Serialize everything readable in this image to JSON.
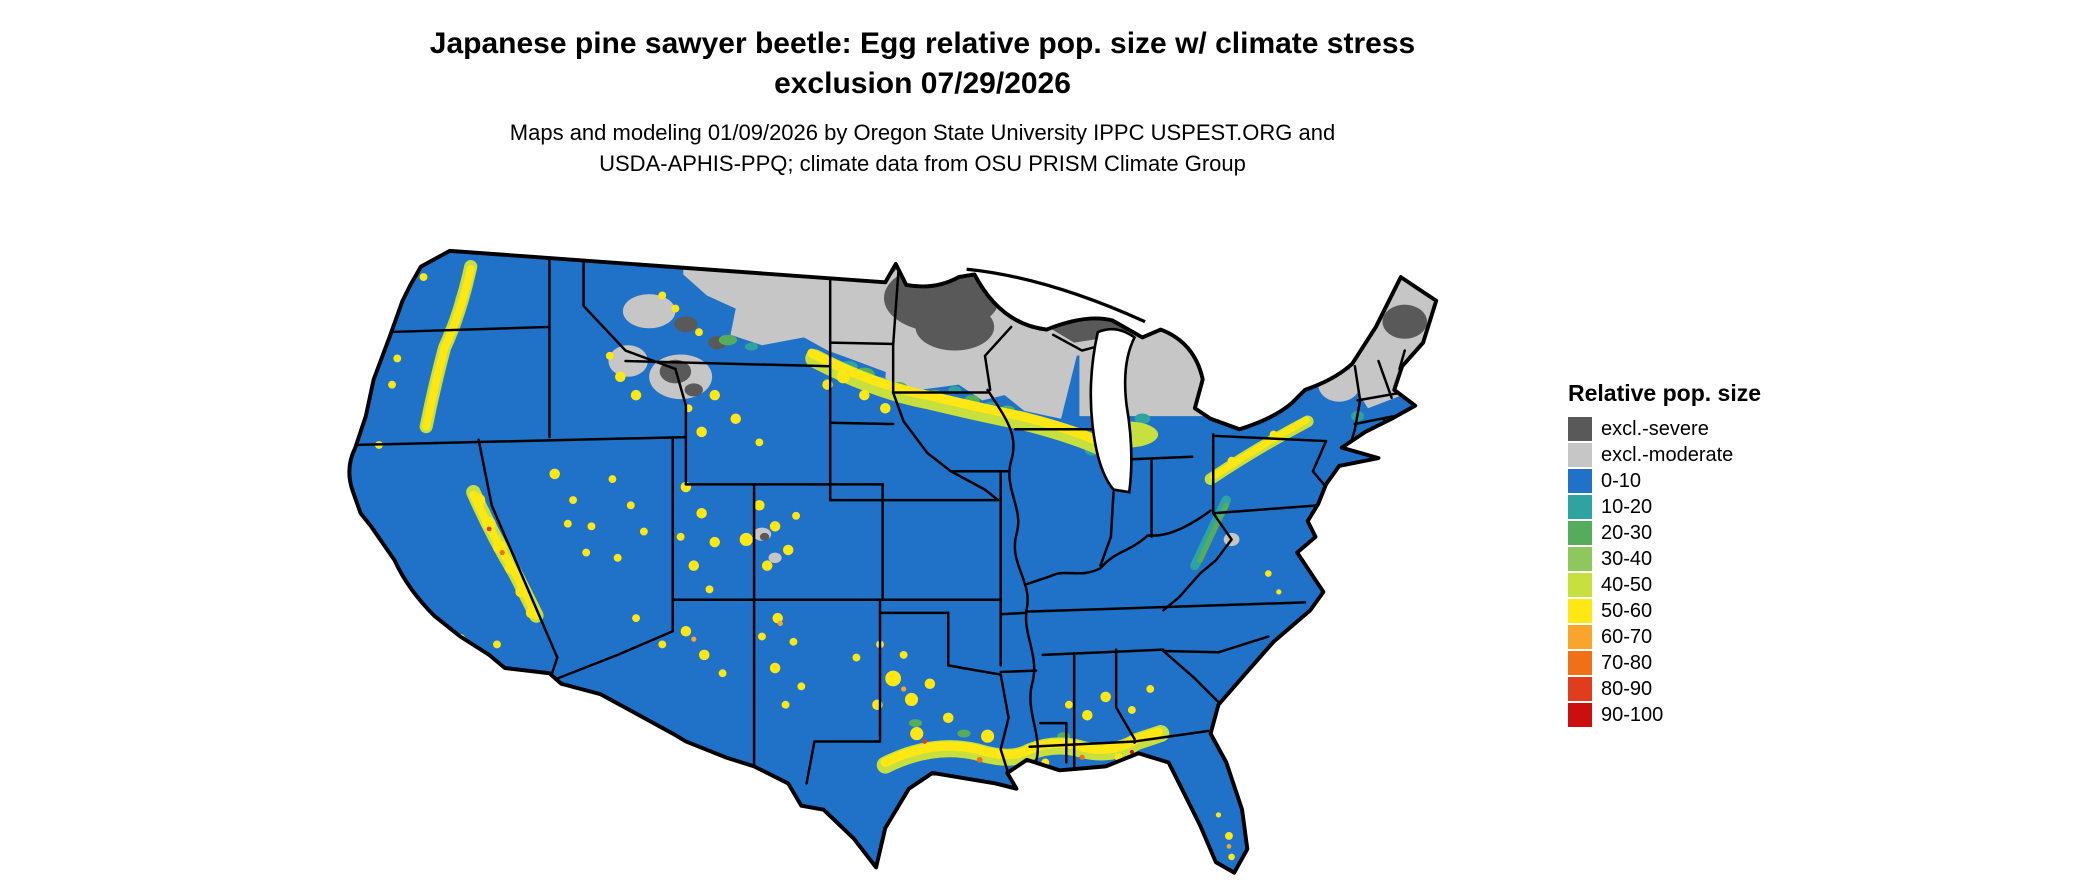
{
  "title": "Japanese pine sawyer beetle: Egg relative pop. size w/ climate stress exclusion 07/29/2026",
  "subtitle": "Maps and modeling 01/09/2026 by Oregon State University IPPC USPEST.ORG and USDA-APHIS-PPQ; climate data from OSU PRISM Climate Group",
  "map": {
    "region_label": "Continental United States",
    "type": "raster choropleth of relative population size with climate stress exclusion zones"
  },
  "legend": {
    "title": "Relative pop. size",
    "items": [
      {
        "label": "excl.-severe",
        "color": "#595959",
        "key": "sev"
      },
      {
        "label": "excl.-moderate",
        "color": "#c6c6c6",
        "key": "mod"
      },
      {
        "label": "0-10",
        "color": "#2071c8",
        "key": "c0"
      },
      {
        "label": "10-20",
        "color": "#2fa3a0",
        "key": "c10"
      },
      {
        "label": "20-30",
        "color": "#55ad5c",
        "key": "c20"
      },
      {
        "label": "30-40",
        "color": "#8ec75c",
        "key": "c30"
      },
      {
        "label": "40-50",
        "color": "#c8e03e",
        "key": "c40"
      },
      {
        "label": "50-60",
        "color": "#ffe713",
        "key": "c50"
      },
      {
        "label": "60-70",
        "color": "#f9a42a",
        "key": "c60"
      },
      {
        "label": "70-80",
        "color": "#ef7016",
        "key": "c70"
      },
      {
        "label": "80-90",
        "color": "#e03d1f",
        "key": "c80"
      },
      {
        "label": "90-100",
        "color": "#cb0f0e",
        "key": "c90"
      }
    ]
  }
}
